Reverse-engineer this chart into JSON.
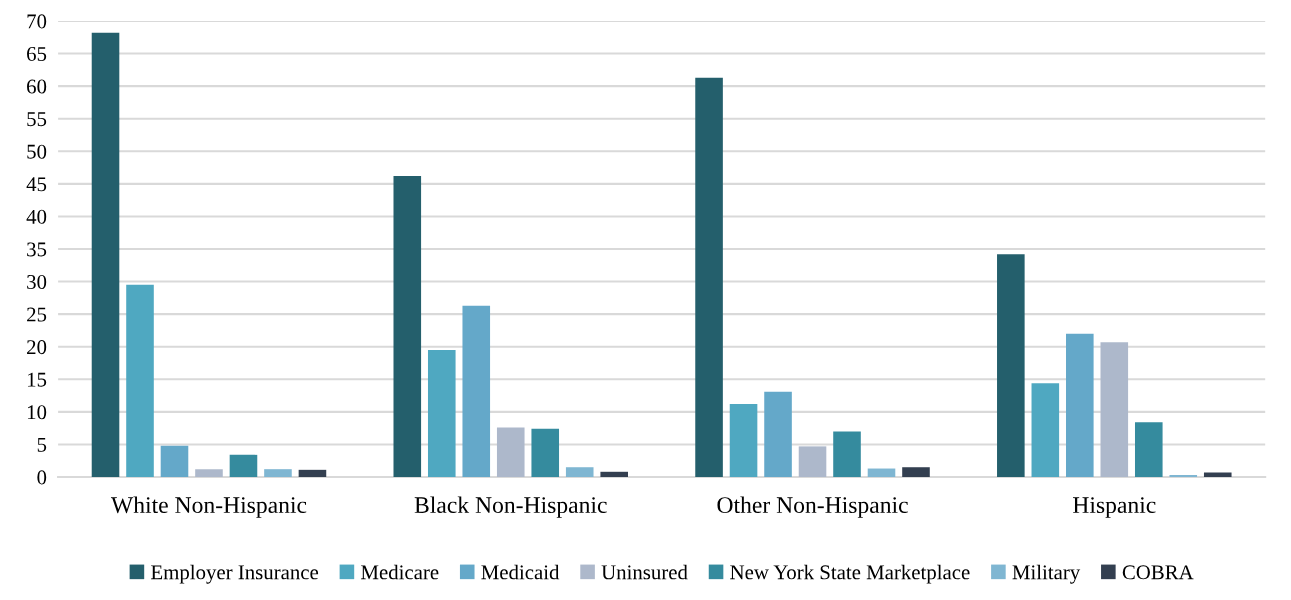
{
  "chart_data": {
    "type": "bar",
    "categories": [
      "White Non-Hispanic",
      "Black Non-Hispanic",
      "Other Non-Hispanic",
      "Hispanic"
    ],
    "series": [
      {
        "name": "Employer Insurance",
        "color": "#245f6c",
        "values": [
          68.2,
          46.2,
          61.3,
          34.2
        ]
      },
      {
        "name": "Medicare",
        "color": "#4fa8c1",
        "values": [
          29.5,
          19.5,
          11.2,
          14.4
        ]
      },
      {
        "name": "Medicaid",
        "color": "#64a8c9",
        "values": [
          4.8,
          26.3,
          13.1,
          22.0
        ]
      },
      {
        "name": "Uninsured",
        "color": "#adb8cb",
        "values": [
          1.2,
          7.6,
          4.7,
          20.7
        ]
      },
      {
        "name": "New York State Marketplace",
        "color": "#358b9e",
        "values": [
          3.4,
          7.4,
          7.0,
          8.4
        ]
      },
      {
        "name": "Military",
        "color": "#7fb6d2",
        "values": [
          1.2,
          1.5,
          1.3,
          0.3
        ]
      },
      {
        "name": "COBRA",
        "color": "#333f50",
        "values": [
          1.1,
          0.8,
          1.5,
          0.7
        ]
      }
    ],
    "ylim": [
      0,
      70
    ],
    "yticks": [
      0,
      5,
      10,
      15,
      20,
      25,
      30,
      35,
      40,
      45,
      50,
      55,
      60,
      65,
      70
    ],
    "grid": "y",
    "legend": "bottom"
  }
}
